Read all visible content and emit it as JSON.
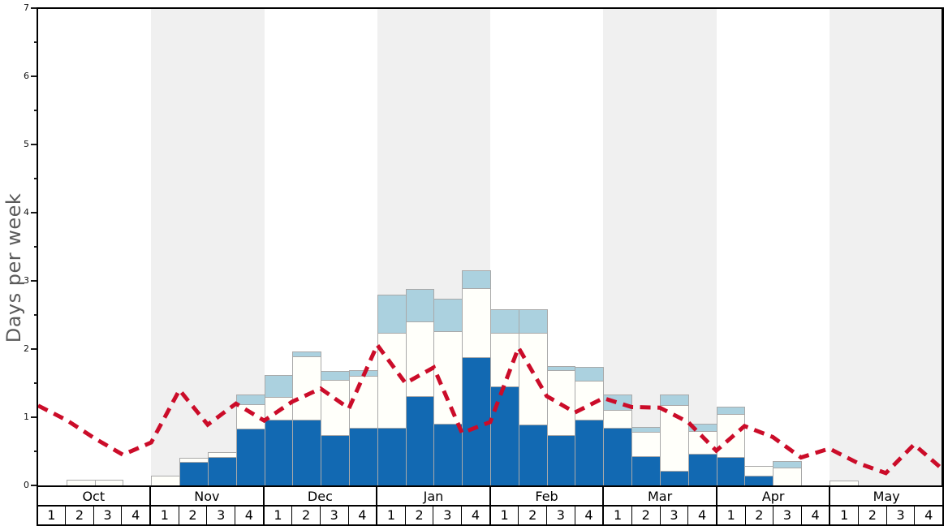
{
  "chart_data": {
    "type": "bar",
    "subtype": "stacked-bars-with-dashed-line",
    "title": "",
    "ylabel": "Days per week",
    "ylim": [
      0,
      7
    ],
    "y_ticks": [
      "0",
      "1",
      "2",
      "3",
      "4",
      "5",
      "6",
      "7"
    ],
    "y_minor_tick_step": 0.5,
    "grid": false,
    "legend_position": "none",
    "months": [
      "Oct",
      "Nov",
      "Dec",
      "Jan",
      "Feb",
      "Mar",
      "Apr",
      "May"
    ],
    "weeks_per_month": 4,
    "week_labels": [
      "1",
      "2",
      "3",
      "4"
    ],
    "shaded_month_indices": [
      1,
      3,
      5,
      7
    ],
    "categories": [
      "Oct-1",
      "Oct-2",
      "Oct-3",
      "Oct-4",
      "Nov-1",
      "Nov-2",
      "Nov-3",
      "Nov-4",
      "Dec-1",
      "Dec-2",
      "Dec-3",
      "Dec-4",
      "Jan-1",
      "Jan-2",
      "Jan-3",
      "Jan-4",
      "Feb-1",
      "Feb-2",
      "Feb-3",
      "Feb-4",
      "Mar-1",
      "Mar-2",
      "Mar-3",
      "Mar-4",
      "Apr-1",
      "Apr-2",
      "Apr-3",
      "Apr-4",
      "May-1",
      "May-2",
      "May-3",
      "May-4"
    ],
    "series": [
      {
        "name": "dark-blue-segment",
        "color": "#1269b2",
        "values": [
          0,
          0,
          0,
          0,
          0,
          0.34,
          0.42,
          0.83,
          0.97,
          0.97,
          0.74,
          0.84,
          0.84,
          1.31,
          0.9,
          1.88,
          1.45,
          0.89,
          0.74,
          0.97,
          0.84,
          0.43,
          0.21,
          0.47,
          0.42,
          0.14,
          0,
          0,
          0,
          0,
          0,
          0
        ]
      },
      {
        "name": "white-segment",
        "color": "#fffffa",
        "values": [
          0,
          0.08,
          0.08,
          0,
          0.14,
          0.07,
          0.07,
          0.36,
          0.33,
          0.92,
          0.81,
          0.77,
          1.4,
          1.09,
          1.36,
          1.01,
          0.79,
          1.35,
          0.95,
          0.57,
          0.27,
          0.36,
          0.97,
          0.33,
          0.63,
          0.15,
          0.26,
          0,
          0.07,
          0,
          0,
          0
        ]
      },
      {
        "name": "light-blue-segment",
        "color": "#abd1df",
        "values": [
          0,
          0,
          0,
          0,
          0,
          0,
          0,
          0.14,
          0.32,
          0.08,
          0.13,
          0.08,
          0.56,
          0.48,
          0.48,
          0.26,
          0.34,
          0.34,
          0.06,
          0.2,
          0.22,
          0.07,
          0.15,
          0.11,
          0.1,
          0,
          0.1,
          0,
          0,
          0,
          0,
          0
        ]
      }
    ],
    "line_series": {
      "name": "red-dashed-line",
      "color": "#cb0c29",
      "style": "dashed",
      "x_positions": "week-boundaries",
      "values": [
        1.17,
        0.96,
        0.69,
        0.45,
        0.63,
        1.4,
        0.89,
        1.2,
        0.95,
        1.23,
        1.42,
        1.13,
        2.06,
        1.5,
        1.73,
        0.77,
        0.93,
        2.02,
        1.31,
        1.07,
        1.28,
        1.15,
        1.14,
        0.93,
        0.51,
        0.87,
        0.71,
        0.41,
        0.54,
        0.33,
        0.18,
        0.6,
        0.24
      ]
    },
    "colors": {
      "band_shade": "#f0f0f0",
      "bar_border": "#a9a9a9",
      "axis": "#000000",
      "ylabel_text": "#5a5a5a"
    }
  }
}
